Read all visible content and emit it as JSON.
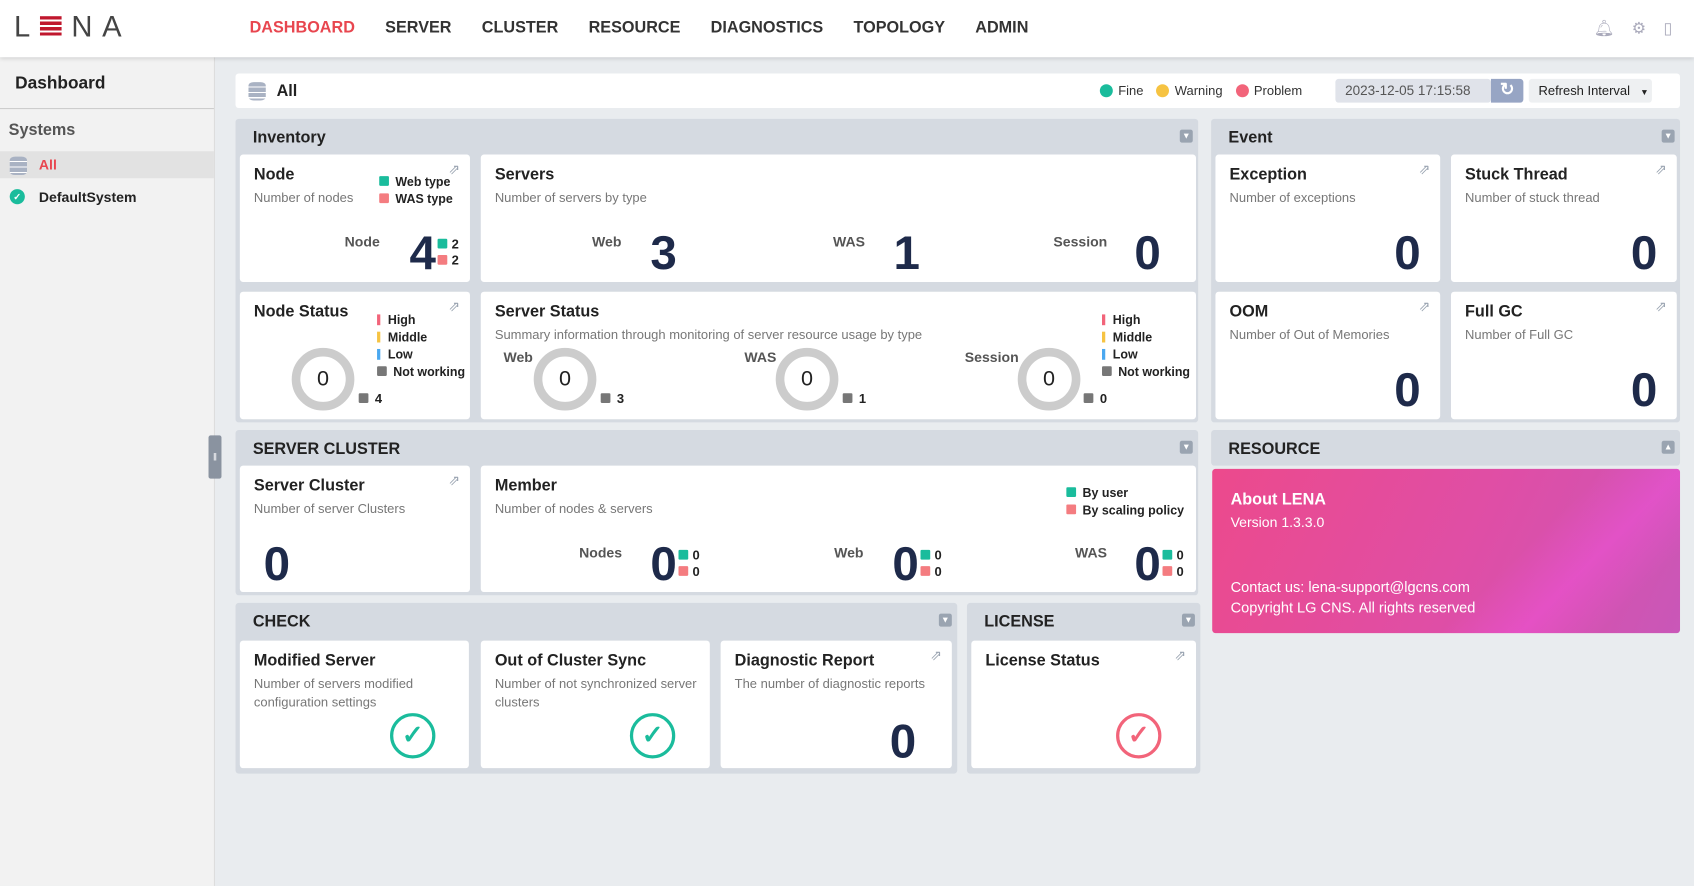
{
  "header": {
    "logo": "LENA",
    "nav": [
      "DASHBOARD",
      "SERVER",
      "CLUSTER",
      "RESOURCE",
      "DIAGNOSTICS",
      "TOPOLOGY",
      "ADMIN"
    ],
    "active": "DASHBOARD"
  },
  "sidebar": {
    "title": "Dashboard",
    "section": "Systems",
    "items": [
      {
        "label": "All",
        "icon": "database-icon"
      },
      {
        "label": "DefaultSystem",
        "icon": "check-circle-icon"
      }
    ]
  },
  "topbar": {
    "title": "All",
    "legend": [
      "Fine",
      "Warning",
      "Problem"
    ],
    "colors": {
      "fine": "#1abc9c",
      "warning": "#f6c342",
      "problem": "#f2647a"
    },
    "datetime": "2023-12-05 17:15:58",
    "refresh_interval": "Refresh Interval"
  },
  "inventory": {
    "title": "Inventory",
    "node": {
      "title": "Node",
      "sub": "Number of nodes",
      "legend": [
        "Web type",
        "WAS type"
      ],
      "label": "Node",
      "value": "4",
      "web": "2",
      "was": "2"
    },
    "servers": {
      "title": "Servers",
      "sub": "Number of servers by type",
      "items": [
        {
          "label": "Web",
          "value": "3"
        },
        {
          "label": "WAS",
          "value": "1"
        },
        {
          "label": "Session",
          "value": "0"
        }
      ]
    },
    "node_status": {
      "title": "Node Status",
      "legend": [
        "High",
        "Middle",
        "Low",
        "Not working"
      ],
      "value": "0",
      "not_working": "4"
    },
    "server_status": {
      "title": "Server Status",
      "sub": "Summary information through monitoring of server resource usage by type",
      "legend": [
        "High",
        "Middle",
        "Low",
        "Not working"
      ],
      "items": [
        {
          "label": "Web",
          "value": "0",
          "not_working": "3"
        },
        {
          "label": "WAS",
          "value": "0",
          "not_working": "1"
        },
        {
          "label": "Session",
          "value": "0",
          "not_working": "0"
        }
      ]
    }
  },
  "event": {
    "title": "Event",
    "cards": [
      {
        "title": "Exception",
        "sub": "Number of exceptions",
        "value": "0"
      },
      {
        "title": "Stuck Thread",
        "sub": "Number of stuck thread",
        "value": "0"
      },
      {
        "title": "OOM",
        "sub": "Number of Out of Memories",
        "value": "0"
      },
      {
        "title": "Full GC",
        "sub": "Number of Full GC",
        "value": "0"
      }
    ]
  },
  "cluster": {
    "title": "SERVER CLUSTER",
    "sc": {
      "title": "Server Cluster",
      "sub": "Number of server Clusters",
      "value": "0"
    },
    "member": {
      "title": "Member",
      "sub": "Number of nodes & servers",
      "legend": [
        "By user",
        "By scaling policy"
      ],
      "items": [
        {
          "label": "Nodes",
          "value": "0",
          "user": "0",
          "policy": "0"
        },
        {
          "label": "Web",
          "value": "0",
          "user": "0",
          "policy": "0"
        },
        {
          "label": "WAS",
          "value": "0",
          "user": "0",
          "policy": "0"
        }
      ]
    }
  },
  "resource": {
    "title": "RESOURCE",
    "about": "About LENA",
    "version": "Version 1.3.3.0",
    "contact": "Contact us: lena-support@lgcns.com",
    "copyright": "Copyright LG CNS. All rights reserved"
  },
  "check": {
    "title": "CHECK",
    "cards": [
      {
        "title": "Modified Server",
        "sub": "Number of servers modified configuration settings"
      },
      {
        "title": "Out of Cluster Sync",
        "sub": "Number of not synchronized server clusters"
      },
      {
        "title": "Diagnostic Report",
        "sub": "The number of diagnostic reports",
        "value": "0"
      }
    ]
  },
  "license": {
    "title": "LICENSE",
    "card": "License Status"
  }
}
